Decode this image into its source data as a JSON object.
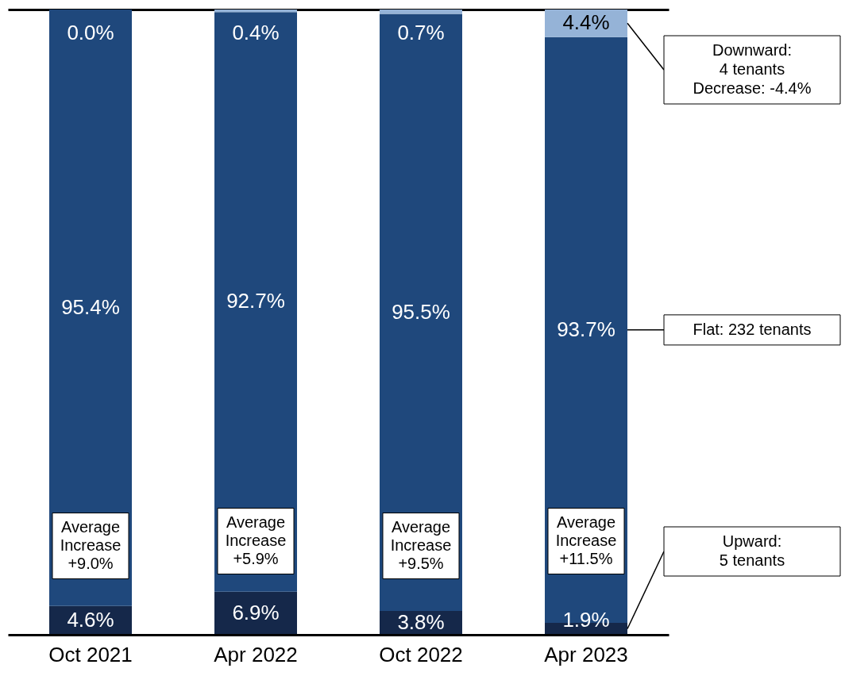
{
  "chart_data": {
    "type": "bar",
    "stacked": true,
    "tick_labels": "x",
    "ylim": [
      0,
      100
    ],
    "categories": [
      "Oct 2021",
      "Apr 2022",
      "Oct 2022",
      "Apr 2023"
    ],
    "series": [
      {
        "name": "Upward:\n5 tenants",
        "color": "#15284a",
        "values": [
          4.6,
          6.9,
          3.8,
          1.9
        ],
        "value_labels": [
          "4.6%",
          "6.9%",
          "3.8%",
          "1.9%"
        ]
      },
      {
        "name": "Flat: 232 tenants",
        "color": "#1f487c",
        "values": [
          95.4,
          92.7,
          95.5,
          93.7
        ],
        "value_labels": [
          "95.4%",
          "92.7%",
          "95.5%",
          "93.7%"
        ]
      },
      {
        "name": "Downward:\n4 tenants\nDecrease: -4.4%",
        "color": "#95b3d7",
        "values": [
          0.0,
          0.4,
          0.7,
          4.4
        ],
        "value_labels": [
          "0.0%",
          "0.4%",
          "0.7%",
          "4.4%"
        ]
      }
    ],
    "annotations": [
      "Average\nIncrease\n+9.0%",
      "Average\nIncrease\n+5.9%",
      "Average\nIncrease\n+9.5%",
      "Average\nIncrease\n+11.5%"
    ]
  }
}
